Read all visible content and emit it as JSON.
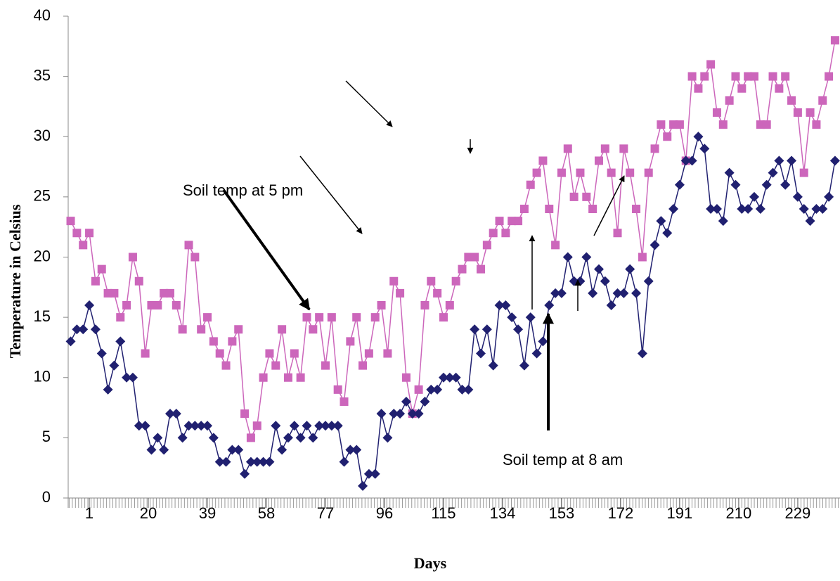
{
  "chart_data": {
    "type": "line",
    "x_label": "Days",
    "y_label": "Temperature in Celsius",
    "annotations": [
      "Soil temp at 5 pm",
      "Soil temp at 8 am"
    ],
    "x": [
      -5,
      -3,
      -1,
      1,
      3,
      5,
      7,
      9,
      11,
      13,
      15,
      17,
      19,
      21,
      23,
      25,
      27,
      29,
      31,
      33,
      35,
      37,
      39,
      41,
      43,
      45,
      47,
      49,
      51,
      53,
      55,
      57,
      59,
      61,
      63,
      65,
      67,
      69,
      71,
      73,
      75,
      77,
      79,
      81,
      83,
      85,
      87,
      89,
      91,
      93,
      95,
      97,
      99,
      101,
      103,
      105,
      107,
      109,
      111,
      113,
      115,
      117,
      119,
      121,
      123,
      125,
      127,
      129,
      131,
      133,
      135,
      137,
      139,
      141,
      143,
      145,
      147,
      149,
      151,
      153,
      155,
      157,
      159,
      161,
      163,
      165,
      167,
      169,
      171,
      173,
      175,
      177,
      179,
      181,
      183,
      185,
      187,
      189,
      191,
      193,
      195,
      197,
      199,
      201,
      203,
      205,
      207,
      209,
      211,
      213,
      215,
      217,
      219,
      221,
      223,
      225,
      227,
      229,
      231,
      233,
      235,
      237,
      239,
      241
    ],
    "series": [
      {
        "color": "#cc66bb",
        "marker": "square",
        "values": [
          23,
          22,
          21,
          22,
          18,
          19,
          17,
          17,
          15,
          16,
          20,
          18,
          12,
          16,
          16,
          17,
          17,
          16,
          14,
          21,
          20,
          14,
          15,
          13,
          12,
          11,
          13,
          14,
          7,
          5,
          6,
          10,
          12,
          11,
          14,
          10,
          12,
          10,
          15,
          14,
          15,
          11,
          15,
          9,
          8,
          13,
          15,
          11,
          12,
          15,
          16,
          12,
          18,
          17,
          10,
          7,
          9,
          16,
          18,
          17,
          15,
          16,
          18,
          19,
          20,
          20,
          19,
          21,
          22,
          23,
          22,
          23,
          23,
          24,
          26,
          27,
          28,
          24,
          21,
          27,
          29,
          25,
          27,
          25,
          24,
          28,
          29,
          27,
          22,
          29,
          27,
          24,
          20,
          27,
          29,
          31,
          30,
          31,
          31,
          28,
          35,
          34,
          35,
          36,
          32,
          31,
          33,
          35,
          34,
          35,
          35,
          31,
          31,
          35,
          34,
          35,
          33,
          32,
          27,
          32,
          31,
          33,
          35,
          38
        ]
      },
      {
        "color": "#202070",
        "marker": "diamond",
        "values": [
          13,
          14,
          14,
          16,
          14,
          12,
          9,
          11,
          13,
          10,
          10,
          6,
          6,
          4,
          5,
          4,
          7,
          7,
          5,
          6,
          6,
          6,
          6,
          5,
          3,
          3,
          4,
          4,
          2,
          3,
          3,
          3,
          3,
          6,
          4,
          5,
          6,
          5,
          6,
          5,
          6,
          6,
          6,
          6,
          3,
          4,
          4,
          1,
          2,
          2,
          7,
          5,
          7,
          7,
          8,
          7,
          7,
          8,
          9,
          9,
          10,
          10,
          10,
          9,
          9,
          14,
          12,
          14,
          11,
          16,
          16,
          15,
          14,
          11,
          15,
          12,
          13,
          16,
          17,
          17,
          20,
          18,
          18,
          20,
          17,
          19,
          18,
          16,
          17,
          17,
          19,
          17,
          12,
          18,
          21,
          23,
          22,
          24,
          26,
          28,
          28,
          30,
          29,
          24,
          24,
          23,
          27,
          26,
          24,
          24,
          25,
          24,
          26,
          27,
          28,
          26,
          28,
          25,
          24,
          23,
          24,
          24,
          25,
          28
        ]
      }
    ],
    "xlim": [
      -5.8,
      242.6
    ],
    "xticks": [
      1,
      20,
      39,
      58,
      77,
      96,
      115,
      134,
      153,
      172,
      191,
      210,
      229
    ],
    "ylim": [
      0,
      40
    ],
    "yticks": [
      0,
      5,
      10,
      15,
      20,
      25,
      30,
      35,
      40
    ]
  }
}
